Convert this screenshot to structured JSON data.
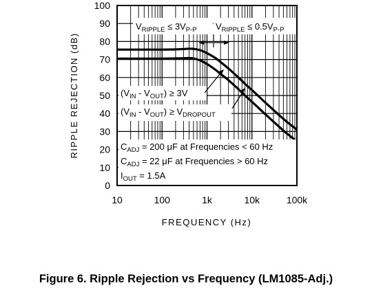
{
  "caption": "Figure 6. Ripple Rejection vs Frequency (LM1085-Adj.)",
  "chart_data": {
    "type": "line",
    "title": "",
    "xlabel": "FREQUENCY (Hz)",
    "ylabel": "RIPPLE REJECTION (dB)",
    "xscale": "log",
    "xlim": [
      10,
      100000
    ],
    "ylim": [
      0,
      100
    ],
    "grid": true,
    "x_tick_labels": [
      "10",
      "100",
      "1k",
      "10k",
      "100k"
    ],
    "y_tick_labels": [
      "0",
      "10",
      "20",
      "30",
      "40",
      "50",
      "60",
      "70",
      "80",
      "90",
      "100"
    ],
    "series": [
      {
        "x": [
          10,
          50,
          100,
          200,
          300,
          400,
          500,
          700,
          1000,
          1500,
          2000,
          3000,
          5000,
          7000,
          10000,
          20000,
          30000,
          50000,
          70000,
          100000
        ],
        "y": [
          75.5,
          75.5,
          75.5,
          75.6,
          75.8,
          76.0,
          75.9,
          75.2,
          73.5,
          71.0,
          68.6,
          65.0,
          60.0,
          56.5,
          53.0,
          46.0,
          42.0,
          37.0,
          34.0,
          31.0
        ]
      },
      {
        "x": [
          10,
          50,
          100,
          200,
          300,
          400,
          500,
          700,
          1000,
          1500,
          2000,
          3000,
          5000,
          7000,
          10000,
          20000,
          30000,
          50000,
          70000,
          100000
        ],
        "y": [
          70.5,
          70.5,
          70.5,
          70.6,
          70.7,
          70.8,
          70.6,
          69.5,
          67.5,
          64.5,
          62.0,
          58.5,
          53.5,
          50.0,
          46.5,
          39.5,
          35.5,
          30.5,
          27.5,
          24.5
        ]
      }
    ],
    "annotations": {
      "ripple_low": {
        "main": "V",
        "sub": "RIPPLE",
        "rel": " ≤ 3V",
        "unit_sub": "P-P"
      },
      "ripple_high": {
        "main": "V",
        "sub": "RIPPLE",
        "rel": " ≤ 0.5V",
        "unit_sub": "P-P"
      },
      "curve_upper": {
        "p1": "(V",
        "s1": "IN",
        "p2": " - V",
        "s2": "OUT",
        "p3": ") ≥ 3V"
      },
      "curve_lower": {
        "p1": "(V",
        "s1": "IN",
        "p2": " - V",
        "s2": "OUT",
        "p3": ") ≥ V",
        "s3": "DROPOUT"
      },
      "cadj_low": {
        "p1": "C",
        "s1": "ADJ",
        "p2": " = 200 μF at Frequencies < 60 Hz"
      },
      "cadj_high": {
        "p1": "C",
        "s1": "ADJ",
        "p2": " = 22 μF at Frequencies > 60 Hz"
      },
      "iout": {
        "p1": "I",
        "s1": "OUT",
        "p2": " = 1.5A"
      }
    },
    "colors": {
      "line": "#000000",
      "grid": "#000000",
      "background": "#ffffff"
    }
  }
}
